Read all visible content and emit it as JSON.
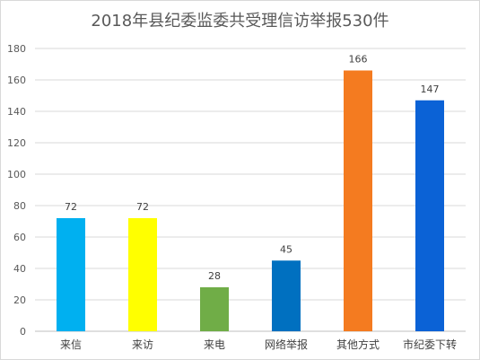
{
  "chart_data": {
    "type": "bar",
    "title": "2018年县纪委监委共受理信访举报530件",
    "xlabel": "",
    "ylabel": "",
    "ylim": [
      0,
      180
    ],
    "yticks": [
      0,
      20,
      40,
      60,
      80,
      100,
      120,
      140,
      160,
      180
    ],
    "grid": true,
    "legend": "none",
    "categories": [
      "来信",
      "来访",
      "来电",
      "网络举报",
      "其他方式",
      "市纪委下转"
    ],
    "values": [
      72,
      72,
      28,
      45,
      166,
      147
    ],
    "data_labels": [
      "72",
      "72",
      "28",
      "45",
      "166",
      "147"
    ],
    "colors": [
      "#00b0f0",
      "#ffff00",
      "#70ad47",
      "#0070c0",
      "#f47b20",
      "#0b62d6"
    ]
  }
}
